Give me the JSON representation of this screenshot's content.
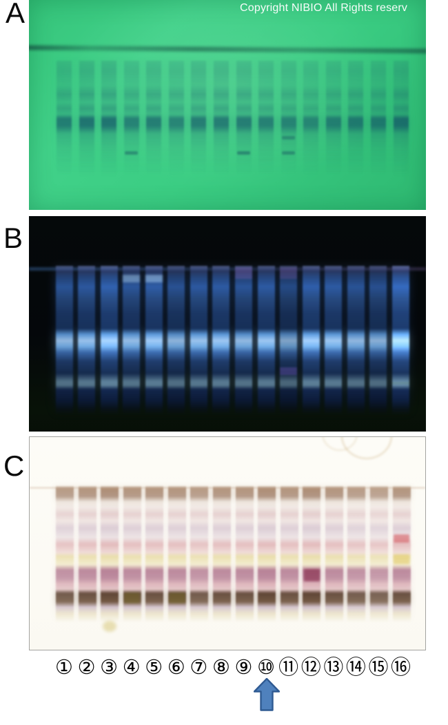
{
  "figure": {
    "panel_labels": [
      "A",
      "B",
      "C"
    ],
    "copyright": "Copyright NIBIO All Rights reserv",
    "lane_numbers": [
      "①",
      "②",
      "③",
      "④",
      "⑤",
      "⑥",
      "⑦",
      "⑧",
      "⑨",
      "⑩",
      "⑪",
      "⑫",
      "⑬",
      "⑭",
      "⑮",
      "⑯"
    ],
    "arrow": {
      "direction": "up",
      "points_to_lane": "⑩"
    },
    "colors": {
      "plate_a_background": "#3bcd83",
      "plate_a_band": "#14445c",
      "plate_b_background": "#05090a",
      "plate_b_band_bright": "#9fc8f2",
      "plate_c_background": "#fdfcf7",
      "plate_c_dark_band": "#4a2c1c",
      "arrow_fill": "#4f81bd",
      "arrow_border": "#2f5a92"
    }
  }
}
